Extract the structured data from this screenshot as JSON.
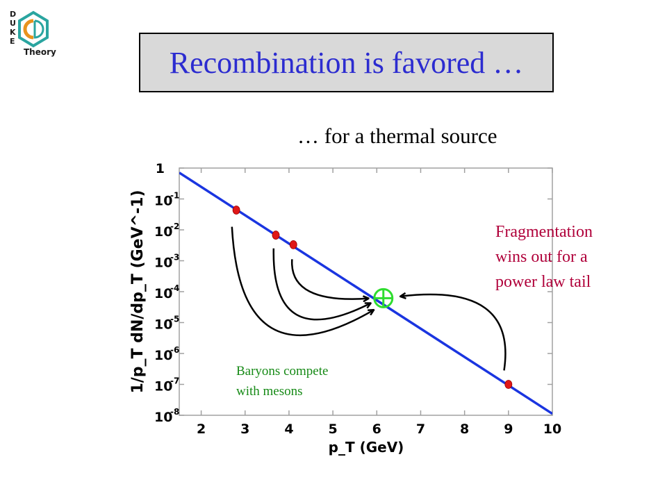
{
  "slide": {
    "title": "Recombination is favored …",
    "subtitle": "… for a thermal source",
    "logo": {
      "icon": "duke-qcd-theory-logo",
      "letters": "DUKE",
      "wordmark": "Theory",
      "colors": {
        "orange": "#e8931d",
        "teal": "#2aa5a0",
        "dark": "#1a1a1a"
      }
    },
    "colors": {
      "title": "#2c2cd0",
      "title_box": "#d9d9d9"
    }
  },
  "annotations": {
    "fragmentation": "Fragmentation\nwins out for a\npower law tail",
    "baryons": "Baryons compete\nwith mesons"
  },
  "chart_data": {
    "type": "line",
    "xlabel": "p_T (GeV)",
    "ylabel": "1/p_T dN/dp_T (GeV^-1)",
    "xlim": [
      1.5,
      10
    ],
    "ylim_log10": [
      -8,
      0
    ],
    "log_y": true,
    "grid": false,
    "x_ticks": [
      "2",
      "3",
      "4",
      "5",
      "6",
      "7",
      "8",
      "9",
      "10"
    ],
    "y_ticks": [
      {
        "exp": 0,
        "label": "1"
      },
      {
        "exp": -1,
        "label": "10"
      },
      {
        "exp": -2,
        "label": "10"
      },
      {
        "exp": -3,
        "label": "10"
      },
      {
        "exp": -4,
        "label": "10"
      },
      {
        "exp": -5,
        "label": "10"
      },
      {
        "exp": -6,
        "label": "10"
      },
      {
        "exp": -7,
        "label": "10"
      },
      {
        "exp": -8,
        "label": "10"
      }
    ],
    "series": [
      {
        "x": [
          1.5,
          10
        ],
        "y_log10": [
          -0.15,
          -7.95
        ]
      }
    ],
    "points": [
      {
        "x": 2.8,
        "y_log10": -1.36
      },
      {
        "x": 3.7,
        "y_log10": -2.17
      },
      {
        "x": 4.1,
        "y_log10": -2.48
      },
      {
        "x": 9.0,
        "y_log10": -7.0
      }
    ],
    "target": {
      "x": 6.15,
      "y_log10": -4.21
    },
    "arrows": [
      {
        "from": {
          "x": 2.7,
          "y_log10": -1.9
        },
        "ctrl": {
          "x": 2.9,
          "y_log10": -7.1
        },
        "to": {
          "x": 5.92,
          "y_log10": -4.6
        }
      },
      {
        "from": {
          "x": 3.65,
          "y_log10": -2.6
        },
        "ctrl": {
          "x": 3.6,
          "y_log10": -6.0
        },
        "to": {
          "x": 5.85,
          "y_log10": -4.38
        }
      },
      {
        "from": {
          "x": 4.07,
          "y_log10": -2.95
        },
        "ctrl": {
          "x": 4.0,
          "y_log10": -4.4
        },
        "to": {
          "x": 5.8,
          "y_log10": -4.22
        }
      },
      {
        "from": {
          "x": 8.9,
          "y_log10": -6.55
        },
        "ctrl": {
          "x": 9.2,
          "y_log10": -3.7
        },
        "to": {
          "x": 6.55,
          "y_log10": -4.15
        }
      }
    ],
    "colors": {
      "line": "#1a35e0",
      "points": "#e01818",
      "target": "#2fdd2f",
      "arrows": "#000000",
      "frame": "#a0a0a0"
    }
  }
}
